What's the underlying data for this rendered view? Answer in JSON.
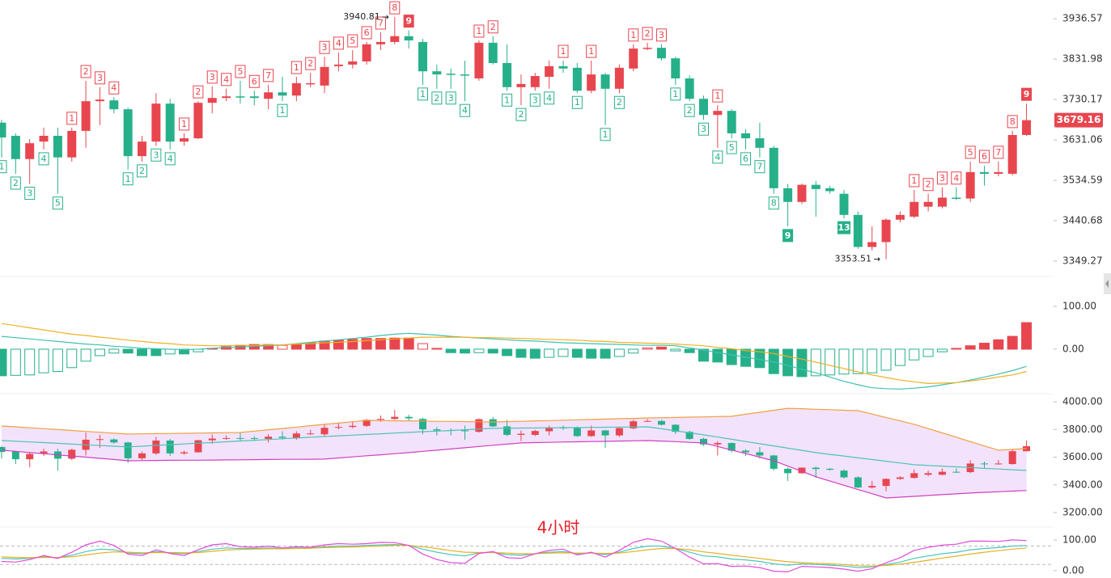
{
  "chart_data": [
    {
      "type": "candlestick",
      "log_scale": true,
      "up_color": "#e8464f",
      "down_color": "#26b08a",
      "ylim": [
        3318.7,
        3986
      ],
      "yticks": [
        3936.57,
        3831.98,
        3730.17,
        3631.06,
        3534.59,
        3440.68,
        3349.27
      ],
      "candles": {
        "open": [
          3673,
          3641,
          3585,
          3627,
          3641,
          3589,
          3653,
          3726,
          3728,
          3706,
          3592,
          3627,
          3720,
          3627,
          3635,
          3722,
          3734,
          3738,
          3738,
          3732,
          3748,
          3740,
          3769,
          3765,
          3814,
          3818,
          3826,
          3870,
          3876,
          3891,
          3876,
          3801,
          3795,
          3793,
          3783,
          3874,
          3822,
          3761,
          3761,
          3787,
          3814,
          3810,
          3752,
          3793,
          3757,
          3808,
          3859,
          3861,
          3834,
          3783,
          3732,
          3692,
          3702,
          3647,
          3635,
          3612,
          3516,
          3484,
          3524,
          3516,
          3503,
          3454,
          3381,
          3392,
          3443,
          3450,
          3473,
          3473,
          3494,
          3492,
          3554,
          3550,
          3550,
          3643
        ],
        "high": [
          3680,
          3647,
          3633,
          3661,
          3661,
          3661,
          3777,
          3761,
          3736,
          3710,
          3641,
          3746,
          3732,
          3647,
          3726,
          3763,
          3757,
          3777,
          3752,
          3767,
          3787,
          3787,
          3797,
          3838,
          3849,
          3855,
          3876,
          3901,
          3940.81,
          3906,
          3884,
          3818,
          3808,
          3828,
          3880,
          3891,
          3870,
          3793,
          3797,
          3828,
          3828,
          3822,
          3828,
          3797,
          3818,
          3870,
          3874,
          3870,
          3838,
          3791,
          3740,
          3716,
          3706,
          3657,
          3673,
          3617,
          3526,
          3527,
          3533,
          3522,
          3512,
          3462,
          3428,
          3446,
          3462,
          3512,
          3503,
          3518,
          3518,
          3579,
          3569,
          3579,
          3653,
          3720
        ],
        "low": [
          3589,
          3550,
          3526,
          3608,
          3503,
          3579,
          3612,
          3667,
          3696,
          3560,
          3579,
          3617,
          3608,
          3617,
          3633,
          3696,
          3726,
          3720,
          3716,
          3706,
          3726,
          3726,
          3761,
          3746,
          3801,
          3808,
          3818,
          3855,
          3870,
          3859,
          3767,
          3757,
          3757,
          3726,
          3777,
          3818,
          3752,
          3716,
          3752,
          3757,
          3797,
          3746,
          3746,
          3667,
          3746,
          3801,
          3855,
          3828,
          3767,
          3726,
          3680,
          3612,
          3635,
          3608,
          3589,
          3503,
          3428,
          3479,
          3450,
          3503,
          3446,
          3377,
          3373,
          3353.51,
          3437,
          3446,
          3462,
          3469,
          3488,
          3484,
          3522,
          3544,
          3546,
          3641
        ],
        "close": [
          3637,
          3585,
          3623,
          3641,
          3589,
          3653,
          3726,
          3730,
          3706,
          3592,
          3627,
          3720,
          3627,
          3635,
          3722,
          3734,
          3738,
          3736,
          3734,
          3748,
          3740,
          3771,
          3771,
          3812,
          3818,
          3826,
          3870,
          3876,
          3891,
          3880,
          3801,
          3793,
          3792,
          3791,
          3874,
          3822,
          3761,
          3769,
          3789,
          3814,
          3808,
          3752,
          3793,
          3757,
          3810,
          3859,
          3861,
          3834,
          3783,
          3732,
          3692,
          3702,
          3647,
          3635,
          3612,
          3516,
          3484,
          3524,
          3514,
          3509,
          3454,
          3381,
          3392,
          3443,
          3454,
          3484,
          3484,
          3494,
          3492,
          3554,
          3550,
          3554,
          3643,
          3679.16
        ]
      },
      "td_sell": [
        null,
        null,
        null,
        null,
        null,
        1,
        2,
        3,
        4,
        null,
        null,
        null,
        null,
        1,
        2,
        3,
        4,
        5,
        6,
        7,
        null,
        1,
        2,
        3,
        4,
        5,
        6,
        7,
        8,
        9,
        null,
        null,
        null,
        null,
        1,
        2,
        null,
        null,
        null,
        null,
        1,
        null,
        1,
        null,
        null,
        1,
        2,
        3,
        null,
        null,
        null,
        1,
        null,
        null,
        null,
        null,
        null,
        null,
        null,
        null,
        null,
        null,
        null,
        null,
        null,
        1,
        2,
        3,
        4,
        5,
        6,
        7,
        8,
        9
      ],
      "td_buy": [
        1,
        2,
        3,
        4,
        5,
        null,
        null,
        null,
        null,
        1,
        2,
        3,
        4,
        null,
        null,
        null,
        null,
        null,
        null,
        null,
        1,
        null,
        null,
        null,
        null,
        null,
        null,
        null,
        null,
        null,
        1,
        2,
        3,
        4,
        null,
        null,
        1,
        2,
        3,
        4,
        null,
        1,
        null,
        1,
        2,
        null,
        null,
        null,
        1,
        2,
        3,
        4,
        5,
        6,
        7,
        8,
        9,
        null,
        null,
        null,
        13,
        null,
        null,
        null,
        null,
        null,
        null,
        null,
        null,
        null,
        null,
        null,
        null,
        null
      ]
    },
    {
      "type": "macd",
      "up_color": "#e8464f",
      "down_color": "#26b08a",
      "ylim": [
        -100,
        164
      ],
      "yticks": [
        {
          "value": 100,
          "label": "100.00"
        },
        {
          "value": 0,
          "label": "0.00"
        }
      ],
      "histogram": [
        -62,
        -61,
        -60,
        -55,
        -52,
        -43,
        -28,
        -15,
        -9,
        -9,
        -15,
        -15,
        -11,
        -11,
        -6,
        2,
        6,
        9,
        11,
        11,
        9,
        11,
        15,
        19,
        21,
        23,
        25,
        25,
        26,
        26,
        13,
        2,
        -8,
        -9,
        -8,
        -9,
        -15,
        -19,
        -21,
        -19,
        -17,
        -19,
        -21,
        -21,
        -17,
        -9,
        3,
        5,
        -4,
        -8,
        -28,
        -30,
        -36,
        -40,
        -43,
        -57,
        -62,
        -64,
        -62,
        -60,
        -58,
        -57,
        -55,
        -49,
        -38,
        -25,
        -17,
        -6,
        2,
        8,
        14,
        22,
        30,
        62
      ],
      "series": [
        {
          "color": "#3fc1b0",
          "values": [
            30,
            27,
            24,
            21,
            18,
            15,
            12,
            10,
            7,
            5,
            2,
            1,
            0,
            -1,
            0,
            2,
            4,
            5,
            7,
            8,
            10,
            13,
            16,
            19,
            22,
            25,
            28,
            32,
            35,
            37,
            35,
            33,
            30,
            28,
            26,
            24,
            22,
            20,
            19,
            17,
            15,
            14,
            13,
            12,
            11,
            10,
            9,
            9,
            8,
            3,
            -2,
            -8,
            -13,
            -19,
            -24,
            -30,
            -38,
            -47,
            -55,
            -65,
            -75,
            -83,
            -90,
            -92,
            -93,
            -91,
            -88,
            -83,
            -78,
            -72,
            -65,
            -58,
            -50,
            -40
          ]
        },
        {
          "color": "#f0b020",
          "values": [
            60,
            55,
            50,
            45,
            40,
            35,
            32,
            28,
            25,
            21,
            18,
            15,
            13,
            10,
            9,
            8,
            8,
            9,
            9,
            10,
            10,
            12,
            13,
            15,
            16,
            18,
            20,
            22,
            24,
            26,
            28,
            28,
            28,
            28,
            27,
            27,
            26,
            25,
            24,
            23,
            22,
            21,
            19,
            18,
            16,
            15,
            14,
            13,
            12,
            10,
            8,
            4,
            1,
            -3,
            -6,
            -10,
            -17,
            -23,
            -30,
            -38,
            -45,
            -53,
            -60,
            -66,
            -72,
            -76,
            -80,
            -79,
            -78,
            -74,
            -70,
            -65,
            -60,
            -52
          ]
        }
      ]
    },
    {
      "type": "bollinger",
      "band_color": "#f3e2fb",
      "label": "4小时",
      "label_color": "#e8202a",
      "ylim": [
        3106.6,
        4040.9
      ],
      "yticks": [
        {
          "value": 4000,
          "label": "4000.00"
        },
        {
          "value": 3800,
          "label": "3800.00"
        },
        {
          "value": 3600,
          "label": "3600.00"
        },
        {
          "value": 3400,
          "label": "3400.00"
        },
        {
          "value": 3200,
          "label": "3200.00"
        }
      ],
      "series": [
        {
          "color": "#f0a040",
          "values": [
            3825,
            3819,
            3812,
            3806,
            3799,
            3793,
            3786,
            3780,
            3773,
            3767,
            3768,
            3770,
            3771,
            3772,
            3774,
            3775,
            3777,
            3778,
            3788,
            3798,
            3807,
            3817,
            3827,
            3837,
            3846,
            3856,
            3866,
            3865,
            3863,
            3862,
            3861,
            3859,
            3858,
            3857,
            3855,
            3854,
            3857,
            3859,
            3862,
            3864,
            3867,
            3870,
            3872,
            3875,
            3878,
            3880,
            3883,
            3885,
            3887,
            3889,
            3891,
            3893,
            3895,
            3910,
            3924,
            3939,
            3953,
            3950,
            3946,
            3943,
            3939,
            3936,
            3911,
            3887,
            3862,
            3837,
            3806,
            3775,
            3744,
            3712,
            3681,
            3650,
            3656,
            3662
          ]
        },
        {
          "color": "#4cc4b8",
          "values": [
            3720,
            3715,
            3710,
            3705,
            3700,
            3694,
            3689,
            3684,
            3679,
            3674,
            3679,
            3685,
            3690,
            3695,
            3701,
            3706,
            3711,
            3717,
            3722,
            3727,
            3733,
            3738,
            3744,
            3749,
            3754,
            3759,
            3764,
            3769,
            3774,
            3779,
            3784,
            3788,
            3793,
            3798,
            3803,
            3808,
            3809,
            3810,
            3811,
            3812,
            3813,
            3814,
            3815,
            3816,
            3817,
            3818,
            3819,
            3805,
            3790,
            3776,
            3761,
            3745,
            3729,
            3713,
            3697,
            3681,
            3665,
            3649,
            3633,
            3620,
            3608,
            3595,
            3583,
            3570,
            3558,
            3545,
            3540,
            3535,
            3530,
            3525,
            3519,
            3514,
            3509,
            3504
          ]
        },
        {
          "color": "#d040c0",
          "values": [
            3650,
            3642,
            3633,
            3625,
            3616,
            3608,
            3600,
            3591,
            3583,
            3574,
            3575,
            3576,
            3577,
            3578,
            3578,
            3579,
            3580,
            3581,
            3582,
            3583,
            3584,
            3584,
            3585,
            3586,
            3594,
            3602,
            3610,
            3617,
            3625,
            3633,
            3642,
            3650,
            3659,
            3668,
            3677,
            3686,
            3694,
            3703,
            3705,
            3707,
            3709,
            3711,
            3713,
            3714,
            3716,
            3718,
            3720,
            3716,
            3712,
            3707,
            3703,
            3677,
            3651,
            3626,
            3600,
            3574,
            3535,
            3497,
            3458,
            3427,
            3397,
            3366,
            3336,
            3305,
            3311,
            3317,
            3323,
            3329,
            3335,
            3341,
            3346,
            3350,
            3355,
            3359
          ]
        }
      ]
    },
    {
      "type": "line",
      "ylim": [
        -24,
        134
      ],
      "yticks": [
        {
          "value": 100,
          "label": "100.00"
        },
        {
          "value": 0,
          "label": "0.00"
        }
      ],
      "reference_lines": [
        80,
        20
      ],
      "series": [
        {
          "color": "#4ac6c0",
          "values": [
            40,
            38,
            40,
            45,
            42,
            50,
            62,
            70,
            68,
            58,
            55,
            62,
            58,
            55,
            62,
            70,
            74,
            72,
            72,
            74,
            72,
            74,
            74,
            78,
            80,
            80,
            82,
            84,
            85,
            82,
            70,
            60,
            52,
            48,
            58,
            60,
            52,
            50,
            55,
            60,
            62,
            55,
            58,
            52,
            60,
            72,
            80,
            80,
            72,
            60,
            48,
            45,
            38,
            35,
            30,
            22,
            18,
            22,
            20,
            18,
            15,
            10,
            12,
            20,
            28,
            40,
            48,
            55,
            60,
            68,
            72,
            75,
            80,
            82
          ]
        },
        {
          "color": "#e8b020",
          "values": [
            45,
            43,
            42,
            43,
            43,
            45,
            51,
            57,
            61,
            60,
            58,
            59,
            59,
            58,
            59,
            63,
            67,
            69,
            70,
            71,
            71,
            72,
            73,
            75,
            76,
            77,
            79,
            80,
            82,
            82,
            78,
            72,
            65,
            60,
            59,
            59,
            57,
            55,
            55,
            57,
            58,
            57,
            57,
            56,
            57,
            62,
            68,
            72,
            72,
            68,
            61,
            56,
            50,
            45,
            40,
            34,
            29,
            26,
            24,
            22,
            20,
            16,
            15,
            17,
            21,
            27,
            34,
            41,
            47,
            54,
            60,
            65,
            70,
            74
          ]
        },
        {
          "color": "#e04ad8",
          "values": [
            30,
            28,
            36,
            49,
            40,
            60,
            84,
            96,
            82,
            54,
            49,
            68,
            56,
            49,
            68,
            84,
            88,
            78,
            76,
            80,
            74,
            78,
            76,
            84,
            88,
            86,
            88,
            92,
            91,
            82,
            54,
            36,
            26,
            24,
            56,
            62,
            42,
            40,
            55,
            66,
            70,
            51,
            60,
            44,
            66,
            92,
            104,
            96,
            72,
            44,
            22,
            23,
            14,
            15,
            10,
            -2,
            -4,
            14,
            12,
            10,
            5,
            -2,
            6,
            26,
            42,
            66,
            76,
            83,
            86,
            96,
            96,
            95,
            100,
            98
          ]
        }
      ]
    }
  ]
}
